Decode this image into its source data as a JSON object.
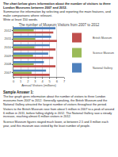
{
  "header": {
    "lines": [
      "The chart below gives information about the number of visitors to three London Museums between 2007 and 2012.",
      "Summarise the information by selecting and reporting the main features, and make comparisons where relevant.",
      "Write at least 150 words."
    ]
  },
  "chart_data": {
    "type": "bar",
    "orientation": "horizontal",
    "title": "The number of Museum Visitors from 2007 to 2012",
    "x_label": "Annual Visitors (millions)",
    "categories": [
      "2007",
      "2008",
      "2009",
      "2010",
      "2011",
      "2012"
    ],
    "series": [
      {
        "name": "British Museum",
        "color": "#c0504d",
        "values": [
          5.0,
          5.8,
          5.5,
          5.8,
          6.0,
          5.5
        ]
      },
      {
        "name": "Science Museum",
        "color": "#9bbb59",
        "values": [
          2.5,
          2.8,
          2.7,
          2.9,
          3.0,
          2.8
        ]
      },
      {
        "name": "National Gallery",
        "color": "#4f81bd",
        "values": [
          4.5,
          4.2,
          4.8,
          5.0,
          5.2,
          5.8
        ]
      }
    ],
    "xlim": [
      0,
      7
    ],
    "xticks": [
      0,
      1,
      2,
      3,
      4,
      5,
      6,
      7
    ],
    "grid": true,
    "legend": "right"
  },
  "section_title": "Sample Answer 1:",
  "paragraphs": [
    "The bar graph gives information about the number of visitors to three London museums from 2007 to 2012. Generally speaking, the British Museum and the National Gallery attracted the largest number of visitors throughout the period.",
    "Visitors to the British Museum rose from about 5 million in 2007 to a peak of around 6 million in 2011, before falling slightly in 2012. The National Gallery saw a steady increase, reaching almost 6 million visitors in 2012.",
    "Science Museum figures stayed much lower, at between 2.5 and 3 million each year, and this museum was visited by the least number of people."
  ]
}
